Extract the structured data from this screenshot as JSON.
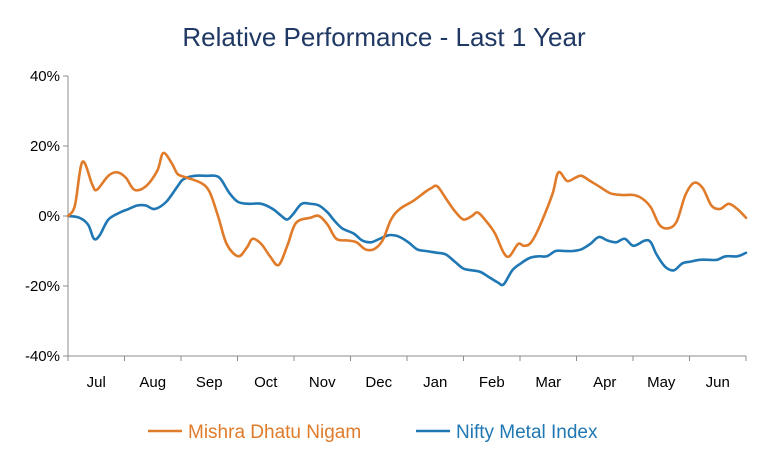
{
  "chart_data": {
    "type": "line",
    "title": "Relative Performance - Last 1 Year",
    "xlabel": "",
    "ylabel": "",
    "ylim": [
      -40,
      40
    ],
    "yticks": [
      40,
      20,
      0,
      -20,
      -40
    ],
    "ytick_labels": [
      "40%",
      "20%",
      "0%",
      "-20%",
      "-40%"
    ],
    "xlim": [
      0,
      11.75
    ],
    "month_labels": [
      "Jul",
      "Aug",
      "Sep",
      "Oct",
      "Nov",
      "Dec",
      "Jan",
      "Feb",
      "Mar",
      "Apr",
      "May",
      "Jun"
    ],
    "grid": false,
    "legend_position": "bottom",
    "series": [
      {
        "name": "Mishra Dhatu Nigam",
        "color": "#E07B2A",
        "points": [
          [
            0.0,
            0
          ],
          [
            0.12,
            3
          ],
          [
            0.25,
            15.5
          ],
          [
            0.42,
            9
          ],
          [
            0.5,
            7.5
          ],
          [
            0.7,
            11.5
          ],
          [
            0.85,
            12.5
          ],
          [
            1.0,
            11
          ],
          [
            1.15,
            7.5
          ],
          [
            1.35,
            8.5
          ],
          [
            1.55,
            13
          ],
          [
            1.65,
            18
          ],
          [
            1.8,
            15
          ],
          [
            1.9,
            12
          ],
          [
            2.05,
            11
          ],
          [
            2.3,
            9.5
          ],
          [
            2.45,
            7
          ],
          [
            2.6,
            0
          ],
          [
            2.75,
            -8
          ],
          [
            2.95,
            -11.5
          ],
          [
            3.1,
            -9
          ],
          [
            3.2,
            -6.5
          ],
          [
            3.35,
            -8
          ],
          [
            3.5,
            -11.5
          ],
          [
            3.65,
            -14
          ],
          [
            3.8,
            -8.5
          ],
          [
            3.95,
            -2
          ],
          [
            4.2,
            -0.5
          ],
          [
            4.35,
            0
          ],
          [
            4.5,
            -2.5
          ],
          [
            4.65,
            -6.5
          ],
          [
            4.85,
            -7
          ],
          [
            5.0,
            -7.5
          ],
          [
            5.15,
            -9.5
          ],
          [
            5.3,
            -9.5
          ],
          [
            5.45,
            -7
          ],
          [
            5.6,
            -1
          ],
          [
            5.75,
            2
          ],
          [
            6.0,
            4.5
          ],
          [
            6.2,
            7
          ],
          [
            6.3,
            8
          ],
          [
            6.4,
            8.5
          ],
          [
            6.55,
            5
          ],
          [
            6.7,
            1.5
          ],
          [
            6.85,
            -1
          ],
          [
            7.0,
            0
          ],
          [
            7.1,
            1
          ],
          [
            7.25,
            -1.5
          ],
          [
            7.4,
            -5
          ],
          [
            7.55,
            -10.5
          ],
          [
            7.65,
            -11.5
          ],
          [
            7.8,
            -8
          ],
          [
            7.9,
            -8.5
          ],
          [
            8.0,
            -8
          ],
          [
            8.1,
            -5.5
          ],
          [
            8.25,
            0
          ],
          [
            8.4,
            6.5
          ],
          [
            8.5,
            12.5
          ],
          [
            8.65,
            10
          ],
          [
            8.8,
            11
          ],
          [
            8.9,
            11.5
          ],
          [
            9.05,
            10
          ],
          [
            9.2,
            8.5
          ],
          [
            9.4,
            6.5
          ],
          [
            9.6,
            6
          ],
          [
            9.8,
            6
          ],
          [
            9.95,
            5
          ],
          [
            10.1,
            2.5
          ],
          [
            10.25,
            -2.5
          ],
          [
            10.4,
            -3.5
          ],
          [
            10.55,
            -1.5
          ],
          [
            10.7,
            6
          ],
          [
            10.85,
            9.5
          ],
          [
            11.0,
            8
          ],
          [
            11.15,
            3
          ],
          [
            11.3,
            2
          ],
          [
            11.45,
            3.5
          ],
          [
            11.6,
            2
          ],
          [
            11.75,
            -0.5
          ]
        ]
      },
      {
        "name": "Nifty Metal Index",
        "color": "#1F77B4",
        "points": [
          [
            0.0,
            0
          ],
          [
            0.2,
            -0.5
          ],
          [
            0.35,
            -2.5
          ],
          [
            0.45,
            -6.5
          ],
          [
            0.55,
            -5.5
          ],
          [
            0.7,
            -1
          ],
          [
            0.9,
            1
          ],
          [
            1.05,
            2
          ],
          [
            1.2,
            3
          ],
          [
            1.35,
            3
          ],
          [
            1.5,
            2
          ],
          [
            1.7,
            4
          ],
          [
            1.9,
            8.5
          ],
          [
            2.0,
            10.5
          ],
          [
            2.2,
            11.5
          ],
          [
            2.4,
            11.5
          ],
          [
            2.55,
            11.5
          ],
          [
            2.65,
            10.5
          ],
          [
            2.8,
            6.5
          ],
          [
            2.95,
            4
          ],
          [
            3.15,
            3.5
          ],
          [
            3.35,
            3.5
          ],
          [
            3.55,
            2
          ],
          [
            3.7,
            0
          ],
          [
            3.8,
            -1
          ],
          [
            3.9,
            0.5
          ],
          [
            4.05,
            3.5
          ],
          [
            4.2,
            3.5
          ],
          [
            4.35,
            3
          ],
          [
            4.5,
            1
          ],
          [
            4.6,
            -1
          ],
          [
            4.75,
            -3.5
          ],
          [
            4.95,
            -5
          ],
          [
            5.1,
            -7
          ],
          [
            5.25,
            -7.5
          ],
          [
            5.4,
            -6.5
          ],
          [
            5.55,
            -5.5
          ],
          [
            5.65,
            -5.5
          ],
          [
            5.75,
            -6
          ],
          [
            5.9,
            -7.5
          ],
          [
            6.05,
            -9.5
          ],
          [
            6.2,
            -10
          ],
          [
            6.4,
            -10.5
          ],
          [
            6.55,
            -11
          ],
          [
            6.7,
            -13
          ],
          [
            6.85,
            -15
          ],
          [
            7.0,
            -15.5
          ],
          [
            7.15,
            -16
          ],
          [
            7.3,
            -17.5
          ],
          [
            7.45,
            -19
          ],
          [
            7.55,
            -19.5
          ],
          [
            7.7,
            -15.5
          ],
          [
            7.85,
            -13.5
          ],
          [
            8.0,
            -12
          ],
          [
            8.15,
            -11.5
          ],
          [
            8.3,
            -11.5
          ],
          [
            8.45,
            -10
          ],
          [
            8.6,
            -10
          ],
          [
            8.75,
            -10
          ],
          [
            8.9,
            -9.5
          ],
          [
            9.05,
            -8
          ],
          [
            9.2,
            -6
          ],
          [
            9.35,
            -7
          ],
          [
            9.5,
            -7.5
          ],
          [
            9.65,
            -6.5
          ],
          [
            9.8,
            -8.5
          ],
          [
            10.0,
            -7
          ],
          [
            10.1,
            -7.5
          ],
          [
            10.2,
            -11
          ],
          [
            10.35,
            -14.5
          ],
          [
            10.5,
            -15.5
          ],
          [
            10.65,
            -13.5
          ],
          [
            10.8,
            -13
          ],
          [
            10.95,
            -12.5
          ],
          [
            11.1,
            -12.5
          ],
          [
            11.25,
            -12.5
          ],
          [
            11.4,
            -11.5
          ],
          [
            11.6,
            -11.5
          ],
          [
            11.75,
            -10.5
          ]
        ]
      }
    ]
  }
}
